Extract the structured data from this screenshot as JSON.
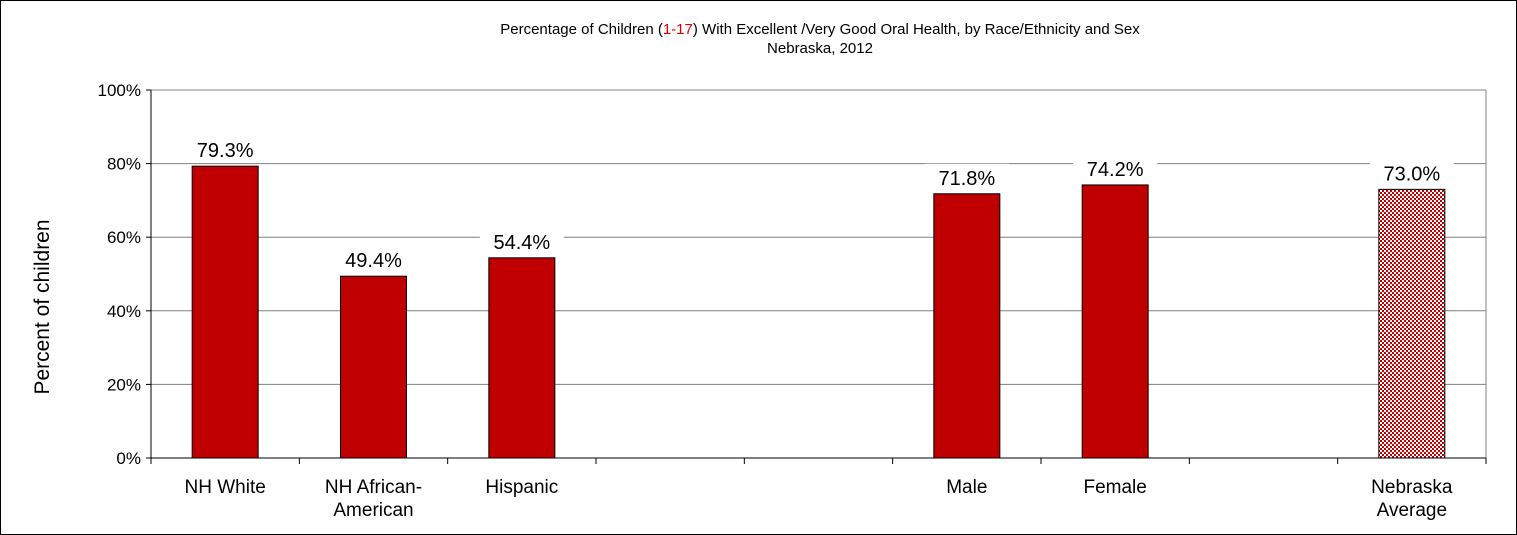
{
  "chart_data": {
    "type": "bar",
    "title_parts": [
      "Percentage of Children (",
      "1-17",
      ") With Excellent /Very Good Oral Health, by Race/Ethnicity and Sex"
    ],
    "subtitle": "Nebraska, 2012",
    "ylabel": "Percent of children",
    "xlabel": "",
    "ylim": [
      0,
      100
    ],
    "yticks": [
      "0%",
      "20%",
      "40%",
      "60%",
      "80%",
      "100%"
    ],
    "grid": true,
    "categories": [
      [
        "NH White"
      ],
      [
        "NH African-",
        "American"
      ],
      [
        "Hispanic"
      ],
      [],
      [],
      [
        "Male"
      ],
      [
        "Female"
      ],
      [],
      [
        "Nebraska",
        "Average"
      ]
    ],
    "values": [
      79.3,
      49.4,
      54.4,
      null,
      null,
      71.8,
      74.2,
      null,
      73.0
    ],
    "data_labels": [
      "79.3%",
      "49.4%",
      "54.4%",
      "",
      "",
      "71.8%",
      "74.2%",
      "",
      "73.0%"
    ],
    "bar_styles": [
      "solid",
      "solid",
      "solid",
      "",
      "",
      "solid",
      "solid",
      "",
      "checkered"
    ],
    "colors": {
      "bar": "#c00000",
      "grid": "#808080"
    }
  }
}
